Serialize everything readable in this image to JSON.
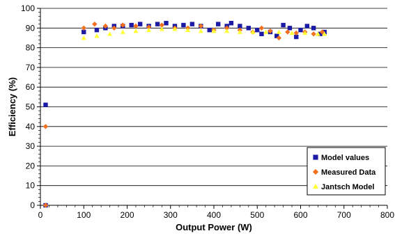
{
  "chart_data": {
    "type": "scatter",
    "title": "",
    "xlabel": "Output Power (W)",
    "ylabel": "Efficiency (%)",
    "xlim": [
      0,
      800
    ],
    "ylim": [
      0,
      100
    ],
    "x_ticks": [
      0,
      100,
      200,
      300,
      400,
      500,
      600,
      700,
      800
    ],
    "y_ticks": [
      0,
      10,
      20,
      30,
      40,
      50,
      60,
      70,
      80,
      90,
      100
    ],
    "grid": "horizontal major gridlines",
    "legend_position": "bottom-right",
    "series": [
      {
        "name": "Model values",
        "marker": "square",
        "color": "#1a1aa6",
        "points": [
          [
            12,
            51
          ],
          [
            12,
            0
          ],
          [
            100,
            88
          ],
          [
            130,
            89
          ],
          [
            150,
            90
          ],
          [
            170,
            91
          ],
          [
            190,
            91
          ],
          [
            210,
            91.5
          ],
          [
            230,
            92
          ],
          [
            250,
            91
          ],
          [
            270,
            92
          ],
          [
            290,
            92.5
          ],
          [
            310,
            91
          ],
          [
            330,
            91.5
          ],
          [
            350,
            92
          ],
          [
            370,
            91
          ],
          [
            390,
            89
          ],
          [
            410,
            92
          ],
          [
            430,
            91
          ],
          [
            440,
            92.5
          ],
          [
            460,
            91
          ],
          [
            480,
            90
          ],
          [
            500,
            89
          ],
          [
            510,
            87
          ],
          [
            530,
            88
          ],
          [
            545,
            86
          ],
          [
            560,
            91.5
          ],
          [
            575,
            90
          ],
          [
            590,
            85.5
          ],
          [
            600,
            89
          ],
          [
            615,
            91
          ],
          [
            630,
            90
          ],
          [
            645,
            87
          ],
          [
            655,
            88
          ]
        ]
      },
      {
        "name": "Measured Data",
        "marker": "diamond",
        "color": "#f07020",
        "points": [
          [
            12,
            40
          ],
          [
            12,
            0
          ],
          [
            100,
            90
          ],
          [
            125,
            92
          ],
          [
            150,
            91
          ],
          [
            170,
            90
          ],
          [
            190,
            91.5
          ],
          [
            220,
            91
          ],
          [
            250,
            90.5
          ],
          [
            280,
            91.5
          ],
          [
            310,
            90
          ],
          [
            340,
            90
          ],
          [
            370,
            91
          ],
          [
            400,
            89
          ],
          [
            430,
            90
          ],
          [
            460,
            89
          ],
          [
            490,
            88
          ],
          [
            510,
            90
          ],
          [
            530,
            88.5
          ],
          [
            550,
            85
          ],
          [
            570,
            88
          ],
          [
            590,
            87.5
          ],
          [
            610,
            88
          ],
          [
            630,
            87
          ],
          [
            650,
            88
          ]
        ]
      },
      {
        "name": "Jantsch Model",
        "marker": "triangle",
        "color": "#ffff33",
        "points": [
          [
            100,
            85
          ],
          [
            130,
            86
          ],
          [
            160,
            87
          ],
          [
            190,
            88
          ],
          [
            220,
            88.5
          ],
          [
            250,
            89
          ],
          [
            280,
            89.5
          ],
          [
            310,
            89.5
          ],
          [
            340,
            89
          ],
          [
            370,
            88.5
          ],
          [
            400,
            88.5
          ],
          [
            430,
            88.5
          ],
          [
            460,
            88
          ],
          [
            490,
            88
          ],
          [
            520,
            88
          ],
          [
            550,
            88
          ],
          [
            580,
            87.5
          ],
          [
            610,
            87.5
          ],
          [
            640,
            87
          ],
          [
            655,
            87
          ]
        ]
      }
    ]
  }
}
